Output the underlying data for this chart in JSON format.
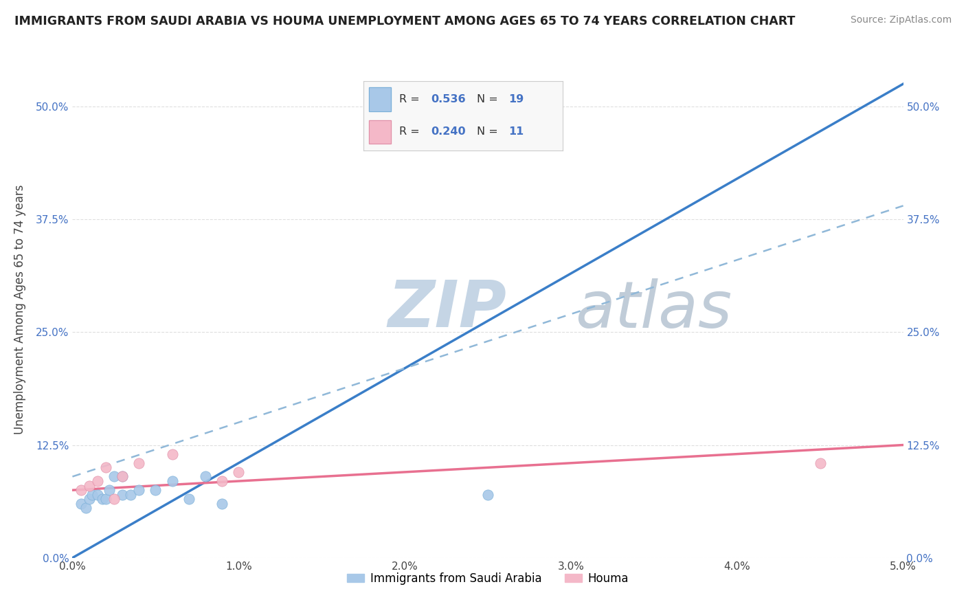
{
  "title": "IMMIGRANTS FROM SAUDI ARABIA VS HOUMA UNEMPLOYMENT AMONG AGES 65 TO 74 YEARS CORRELATION CHART",
  "source": "Source: ZipAtlas.com",
  "ylabel": "Unemployment Among Ages 65 to 74 years",
  "legend_label1": "Immigrants from Saudi Arabia",
  "legend_label2": "Houma",
  "R1": "0.536",
  "N1": "19",
  "R2": "0.240",
  "N2": "11",
  "color1": "#a8c8e8",
  "color2": "#f4b8c8",
  "trendline1_color": "#3a7ec8",
  "trendline2_color": "#e87090",
  "trendline2_dash_color": "#90b8d8",
  "x1_scatter": [
    0.0005,
    0.0008,
    0.001,
    0.0012,
    0.0015,
    0.0018,
    0.002,
    0.0022,
    0.0025,
    0.003,
    0.003,
    0.0035,
    0.004,
    0.005,
    0.006,
    0.007,
    0.008,
    0.009,
    0.025
  ],
  "y1_scatter": [
    0.06,
    0.055,
    0.065,
    0.07,
    0.07,
    0.065,
    0.065,
    0.075,
    0.09,
    0.07,
    0.09,
    0.07,
    0.075,
    0.075,
    0.085,
    0.065,
    0.09,
    0.06,
    0.07
  ],
  "x2_scatter": [
    0.0005,
    0.001,
    0.0015,
    0.002,
    0.0025,
    0.003,
    0.004,
    0.006,
    0.009,
    0.01,
    0.045
  ],
  "y2_scatter": [
    0.075,
    0.08,
    0.085,
    0.1,
    0.065,
    0.09,
    0.105,
    0.115,
    0.085,
    0.095,
    0.105
  ],
  "xlim": [
    0.0,
    0.05
  ],
  "ylim": [
    0.0,
    0.55
  ],
  "x_ticks": [
    0.0,
    0.01,
    0.02,
    0.03,
    0.04,
    0.05
  ],
  "x_tick_labels": [
    "0.0%",
    "1.0%",
    "2.0%",
    "3.0%",
    "4.0%",
    "5.0%"
  ],
  "y_ticks": [
    0.0,
    0.125,
    0.25,
    0.375,
    0.5
  ],
  "y_tick_labels": [
    "0.0%",
    "12.5%",
    "25.0%",
    "37.5%",
    "50.0%"
  ],
  "background_color": "#ffffff",
  "grid_color": "#d8d8d8",
  "watermark_zip": "ZIP",
  "watermark_atlas": "atlas",
  "watermark_color_zip": "#c5d5e5",
  "watermark_color_atlas": "#c0ccd8",
  "scatter_size1": 120,
  "scatter_size2": 120,
  "trendline1_intercept": 0.0,
  "trendline1_slope": 10.5,
  "trendline2_intercept": 0.075,
  "trendline2_slope": 1.0,
  "trendline2_dash_intercept": 0.09,
  "trendline2_dash_slope": 6.0
}
